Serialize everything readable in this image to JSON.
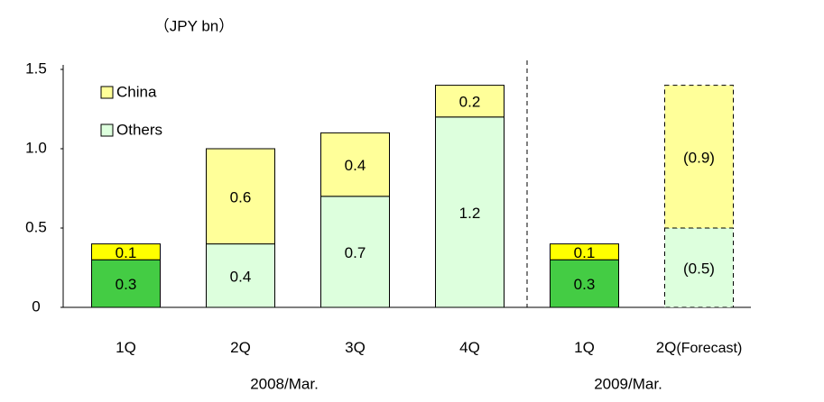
{
  "chart_data": {
    "type": "stacked_bar",
    "y_label": "（JPY bn）",
    "categories": [
      "1Q",
      "2Q",
      "3Q",
      "4Q",
      "1Q",
      "2Q"
    ],
    "category_notes": [
      null,
      null,
      null,
      null,
      null,
      "(Forecast)"
    ],
    "x_groups": [
      {
        "label": "2008/Mar.",
        "span": 4
      },
      {
        "label": "2009/Mar.",
        "span": 2
      }
    ],
    "series": [
      {
        "name": "Others",
        "color": "#ddffdd",
        "colors": [
          "#44cc44",
          "#ddffdd",
          "#ddffdd",
          "#ddffdd",
          "#44cc44",
          "#ddffdd"
        ],
        "values": [
          0.3,
          0.4,
          0.7,
          1.2,
          0.3,
          0.5
        ],
        "value_labels": [
          "0.3",
          "0.4",
          "0.7",
          "1.2",
          "0.3",
          "(0.5)"
        ]
      },
      {
        "name": "China",
        "color": "#ffff99",
        "colors": [
          "#ffff00",
          "#ffff99",
          "#ffff99",
          "#ffff99",
          "#ffff00",
          "#ffff99"
        ],
        "values": [
          0.1,
          0.6,
          0.4,
          0.2,
          0.1,
          0.9
        ],
        "value_labels": [
          "0.1",
          "0.6",
          "0.4",
          "0.2",
          "0.1",
          "(0.9)"
        ]
      }
    ],
    "ylim": [
      0,
      1.5
    ],
    "yticks": [
      0,
      0.5,
      {
        "value": 1,
        "label": "1.0"
      },
      1.5
    ],
    "grid": false,
    "legend": "upper-left"
  }
}
